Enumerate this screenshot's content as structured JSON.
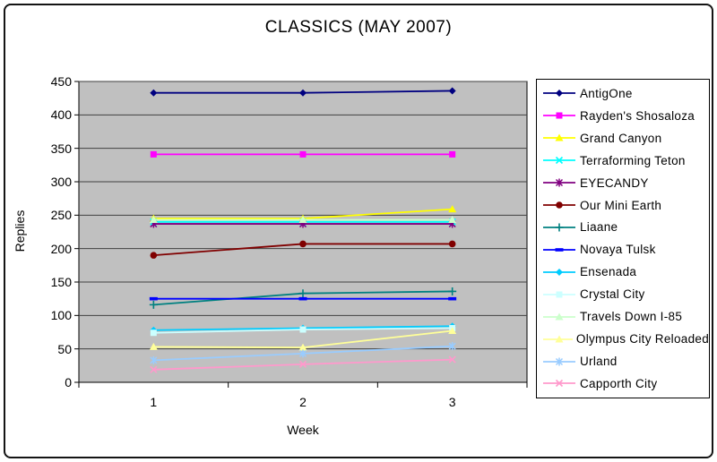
{
  "window": {
    "background": "#ffffff",
    "border_color": "#141414"
  },
  "chart_data": {
    "type": "line",
    "title": "CLASSICS (MAY 2007)",
    "xlabel": "Week",
    "ylabel": "Replies",
    "x": [
      "1",
      "2",
      "3"
    ],
    "ylim": [
      0,
      450
    ],
    "ytick_step": 50,
    "yticks": [
      450,
      400,
      350,
      300,
      250,
      200,
      150,
      100,
      50,
      0
    ],
    "grid": "horizontal",
    "plot_bg": "#c0c0c0",
    "gridline_color": "#404040",
    "legend_position": "right",
    "series": [
      {
        "name": "AntigOne",
        "color": "#000080",
        "marker": "diamond",
        "values": [
          433,
          433,
          436
        ]
      },
      {
        "name": "Rayden's Shosaloza",
        "color": "#FF00FF",
        "marker": "square",
        "values": [
          341,
          341,
          341
        ]
      },
      {
        "name": "Grand Canyon",
        "color": "#FFFF00",
        "marker": "triangle",
        "values": [
          245,
          245,
          259
        ]
      },
      {
        "name": "Terraforming Teton",
        "color": "#00FFFF",
        "marker": "x",
        "values": [
          240,
          240,
          240
        ]
      },
      {
        "name": "EYECANDY",
        "color": "#800080",
        "marker": "asterisk",
        "values": [
          237,
          237,
          237
        ]
      },
      {
        "name": "Our Mini Earth",
        "color": "#800000",
        "marker": "circle",
        "values": [
          190,
          207,
          207
        ]
      },
      {
        "name": "Liaane",
        "color": "#008080",
        "marker": "plus",
        "values": [
          116,
          133,
          136
        ]
      },
      {
        "name": "Novaya Tulsk",
        "color": "#0000FF",
        "marker": "dash",
        "values": [
          125,
          125,
          125
        ]
      },
      {
        "name": "Ensenada",
        "color": "#00CCFF",
        "marker": "diamond",
        "values": [
          78,
          81,
          84
        ]
      },
      {
        "name": "Crystal City",
        "color": "#CCFFFF",
        "marker": "square",
        "values": [
          74,
          79,
          81
        ]
      },
      {
        "name": "Travels Down I-85",
        "color": "#CCFFCC",
        "marker": "triangle",
        "values": [
          243,
          243,
          243
        ]
      },
      {
        "name": "Olympus City Reloaded",
        "color": "#FFFF99",
        "marker": "triangle",
        "values": [
          53,
          52,
          77
        ]
      },
      {
        "name": "Urland",
        "color": "#99CCFF",
        "marker": "asterisk",
        "values": [
          33,
          43,
          54
        ]
      },
      {
        "name": "Capporth City",
        "color": "#FF99CC",
        "marker": "x",
        "values": [
          19,
          27,
          34
        ]
      }
    ]
  }
}
